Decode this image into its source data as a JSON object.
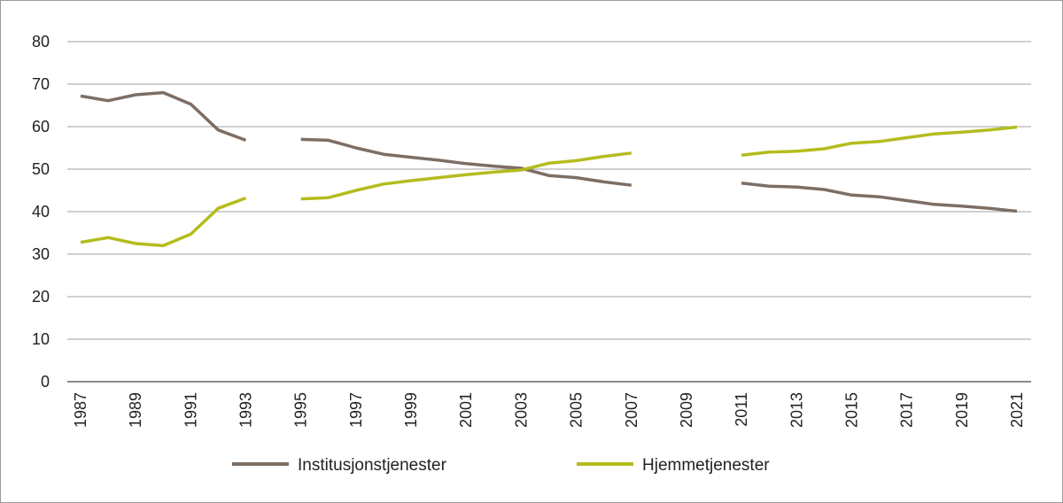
{
  "chart_data": {
    "type": "line",
    "x": [
      1987,
      1988,
      1989,
      1990,
      1991,
      1992,
      1993,
      1994,
      1995,
      1996,
      1997,
      1998,
      1999,
      2000,
      2001,
      2002,
      2003,
      2004,
      2005,
      2006,
      2007,
      2008,
      2009,
      2010,
      2011,
      2012,
      2013,
      2014,
      2015,
      2016,
      2017,
      2018,
      2019,
      2020,
      2021
    ],
    "xticks": [
      "1987",
      "1989",
      "1991",
      "1993",
      "1995",
      "1997",
      "1999",
      "2001",
      "2003",
      "2005",
      "2007",
      "2009",
      "2011",
      "2013",
      "2015",
      "2017",
      "2019",
      "2021"
    ],
    "yticks": [
      "0",
      "10",
      "20",
      "30",
      "40",
      "50",
      "60",
      "70",
      "80"
    ],
    "ylim": [
      0,
      80
    ],
    "xlim": [
      1987,
      2021
    ],
    "grid": true,
    "legend_position": "bottom",
    "title": "",
    "xlabel": "",
    "ylabel": "",
    "series": [
      {
        "name": "Institusjonstjenester",
        "color": "#7d6e64",
        "values": [
          67.2,
          66.1,
          67.5,
          68.0,
          65.3,
          59.2,
          56.8,
          null,
          57.0,
          56.8,
          55.0,
          53.5,
          52.8,
          52.1,
          51.3,
          50.7,
          50.2,
          48.5,
          48.0,
          47.0,
          46.2,
          null,
          null,
          null,
          46.7,
          46.0,
          45.8,
          45.2,
          43.9,
          43.5,
          42.6,
          41.7,
          41.3,
          40.8,
          40.1
        ]
      },
      {
        "name": "Hjemmetjenester",
        "color": "#b4bc1e",
        "values": [
          32.8,
          33.9,
          32.5,
          32.0,
          34.7,
          40.8,
          43.2,
          null,
          43.0,
          43.3,
          45.0,
          46.5,
          47.3,
          48.0,
          48.7,
          49.3,
          49.8,
          51.4,
          52.0,
          53.0,
          53.8,
          null,
          null,
          null,
          53.3,
          54.0,
          54.2,
          54.8,
          56.1,
          56.5,
          57.4,
          58.3,
          58.7,
          59.2,
          59.9
        ]
      }
    ]
  }
}
